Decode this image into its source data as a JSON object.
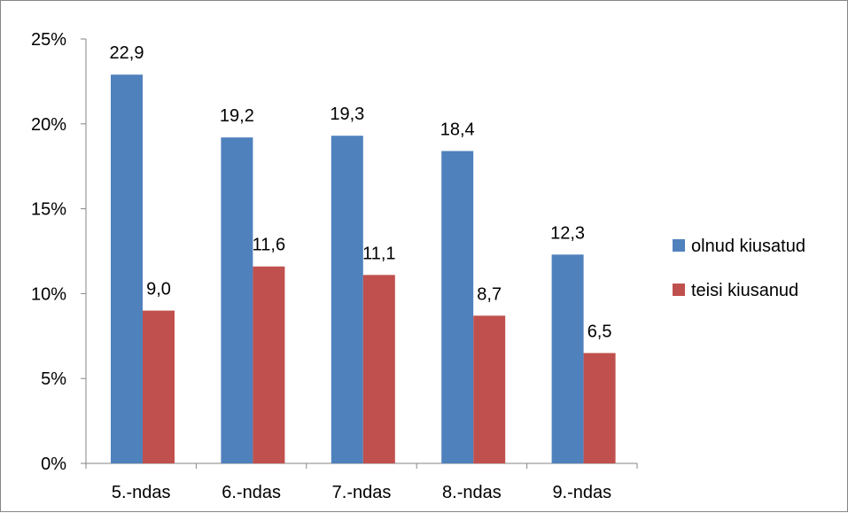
{
  "chart_data": {
    "type": "bar",
    "categories": [
      "5.-ndas",
      "6.-ndas",
      "7.-ndas",
      "8.-ndas",
      "9.-ndas"
    ],
    "series": [
      {
        "name": "olnud kiusatud",
        "color": "#4F81BD",
        "values": [
          22.9,
          19.2,
          19.3,
          18.4,
          12.3
        ],
        "labels": [
          "22,9",
          "19,2",
          "19,3",
          "18,4",
          "12,3"
        ]
      },
      {
        "name": "teisi kiusanud",
        "color": "#C0504D",
        "values": [
          9.0,
          11.6,
          11.1,
          8.7,
          6.5
        ],
        "labels": [
          "9,0",
          "11,6",
          "11,1",
          "8,7",
          "6,5"
        ]
      }
    ],
    "yticks": [
      0,
      5,
      10,
      15,
      20,
      25
    ],
    "ytick_labels": [
      "0%",
      "5%",
      "10%",
      "15%",
      "20%",
      "25%"
    ],
    "ylim": [
      0,
      25
    ],
    "grid": false,
    "legend_position": "right"
  }
}
